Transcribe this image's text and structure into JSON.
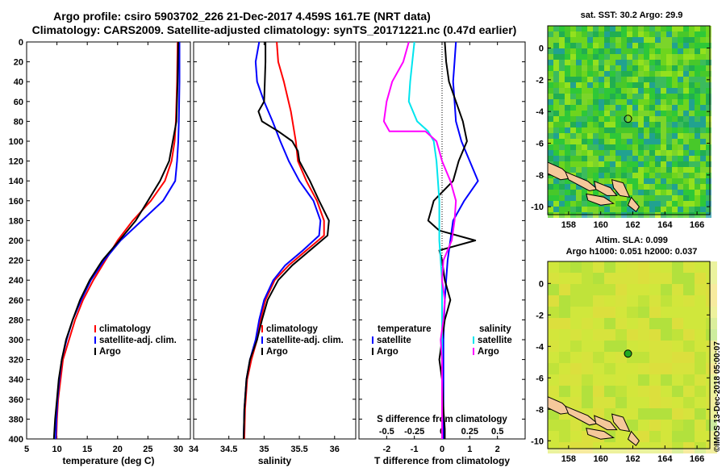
{
  "header": {
    "title_line1": "Argo profile: csiro 5903702_226 21-Dec-2017 4.459S 161.7E (NRT data)",
    "title_line2": "Climatology: CARS2009. Satellite-adjusted climatology: synTS_20171221.nc (0.47d earlier)"
  },
  "colors": {
    "climatology": "#ff0000",
    "satellite": "#0000ff",
    "argo": "#000000",
    "sat_salinity": "#00e5ee",
    "salinity_diff": "#ff00ff"
  },
  "chart_data": [
    {
      "id": "temperature",
      "type": "line",
      "xlabel": "temperature (deg C)",
      "xlim": [
        5,
        32
      ],
      "xticks": [
        "5",
        "10",
        "15",
        "20",
        "25",
        "30"
      ],
      "xtick_values": [
        5,
        10,
        15,
        20,
        25,
        30
      ],
      "ylim": [
        0,
        400
      ],
      "yticks": [
        "0",
        "20",
        "40",
        "60",
        "80",
        "100",
        "120",
        "140",
        "160",
        "180",
        "200",
        "220",
        "240",
        "260",
        "280",
        "300",
        "320",
        "340",
        "360",
        "380",
        "400"
      ],
      "ytick_values": [
        0,
        20,
        40,
        60,
        80,
        100,
        120,
        140,
        160,
        180,
        200,
        220,
        240,
        260,
        280,
        300,
        320,
        340,
        360,
        380,
        400
      ],
      "legend": [
        "climatology",
        "satellite-adj. clim.",
        "Argo"
      ],
      "series": [
        {
          "name": "climatology",
          "color": "#ff0000",
          "points": [
            [
              29.9,
              0
            ],
            [
              29.8,
              40
            ],
            [
              29.6,
              80
            ],
            [
              29.4,
              100
            ],
            [
              28.9,
              120
            ],
            [
              27.8,
              140
            ],
            [
              25.5,
              160
            ],
            [
              22.5,
              180
            ],
            [
              20,
              200
            ],
            [
              18,
              220
            ],
            [
              16,
              240
            ],
            [
              14.3,
              260
            ],
            [
              13,
              280
            ],
            [
              12,
              300
            ],
            [
              11,
              320
            ],
            [
              10.6,
              340
            ],
            [
              10.2,
              360
            ],
            [
              10,
              380
            ],
            [
              9.9,
              400
            ]
          ]
        },
        {
          "name": "satellite-adj. clim.",
          "color": "#0000ff",
          "points": [
            [
              30.2,
              0
            ],
            [
              30.2,
              40
            ],
            [
              30.1,
              80
            ],
            [
              30,
              100
            ],
            [
              29.8,
              120
            ],
            [
              29.5,
              140
            ],
            [
              27.5,
              160
            ],
            [
              24,
              180
            ],
            [
              20.5,
              200
            ],
            [
              17.8,
              220
            ],
            [
              15.6,
              240
            ],
            [
              14,
              260
            ],
            [
              12.6,
              280
            ],
            [
              11.6,
              300
            ],
            [
              10.8,
              320
            ],
            [
              10.4,
              340
            ],
            [
              10.1,
              360
            ],
            [
              9.9,
              380
            ],
            [
              9.8,
              400
            ]
          ]
        },
        {
          "name": "Argo",
          "color": "#000000",
          "points": [
            [
              30,
              0
            ],
            [
              29.9,
              40
            ],
            [
              29.7,
              80
            ],
            [
              29.1,
              100
            ],
            [
              28.5,
              120
            ],
            [
              27,
              140
            ],
            [
              25,
              160
            ],
            [
              23,
              180
            ],
            [
              20.3,
              200
            ],
            [
              17.5,
              220
            ],
            [
              15.4,
              240
            ],
            [
              13.8,
              260
            ],
            [
              12.6,
              280
            ],
            [
              11.5,
              300
            ],
            [
              10.8,
              320
            ],
            [
              10.3,
              340
            ],
            [
              10,
              360
            ],
            [
              9.7,
              380
            ],
            [
              9.5,
              400
            ]
          ]
        }
      ]
    },
    {
      "id": "salinity",
      "type": "line",
      "xlabel": "salinity",
      "xlim": [
        34,
        36.3
      ],
      "xticks": [
        "34",
        "34.5",
        "35",
        "35.5",
        "36"
      ],
      "xtick_values": [
        34,
        34.5,
        35,
        35.5,
        36
      ],
      "ylim": [
        0,
        400
      ],
      "legend": [
        "climatology",
        "satellite-adj. clim.",
        "Argo"
      ],
      "series": [
        {
          "name": "climatology",
          "color": "#ff0000",
          "points": [
            [
              35.18,
              0
            ],
            [
              35.2,
              20
            ],
            [
              35.28,
              40
            ],
            [
              35.38,
              70
            ],
            [
              35.45,
              100
            ],
            [
              35.48,
              120
            ],
            [
              35.6,
              140
            ],
            [
              35.75,
              160
            ],
            [
              35.85,
              180
            ],
            [
              35.85,
              195
            ],
            [
              35.6,
              210
            ],
            [
              35.35,
              225
            ],
            [
              35.15,
              240
            ],
            [
              35.02,
              260
            ],
            [
              34.95,
              280
            ],
            [
              34.9,
              300
            ],
            [
              34.82,
              320
            ],
            [
              34.76,
              340
            ],
            [
              34.73,
              370
            ],
            [
              34.72,
              400
            ]
          ]
        },
        {
          "name": "satellite-adj. clim.",
          "color": "#0000ff",
          "points": [
            [
              34.93,
              0
            ],
            [
              34.88,
              20
            ],
            [
              34.9,
              40
            ],
            [
              35,
              60
            ],
            [
              35.12,
              80
            ],
            [
              35.23,
              100
            ],
            [
              35.35,
              120
            ],
            [
              35.5,
              140
            ],
            [
              35.7,
              160
            ],
            [
              35.8,
              180
            ],
            [
              35.78,
              195
            ],
            [
              35.55,
              210
            ],
            [
              35.3,
              225
            ],
            [
              35.13,
              240
            ],
            [
              35,
              260
            ],
            [
              34.93,
              280
            ],
            [
              34.88,
              300
            ],
            [
              34.8,
              320
            ],
            [
              34.75,
              340
            ],
            [
              34.72,
              370
            ],
            [
              34.71,
              400
            ]
          ]
        },
        {
          "name": "Argo",
          "color": "#000000",
          "points": [
            [
              35.02,
              0
            ],
            [
              35.02,
              20
            ],
            [
              35.01,
              40
            ],
            [
              35,
              60
            ],
            [
              34.92,
              70
            ],
            [
              34.97,
              80
            ],
            [
              35.2,
              90
            ],
            [
              35.4,
              100
            ],
            [
              35.48,
              110
            ],
            [
              35.5,
              120
            ],
            [
              35.65,
              140
            ],
            [
              35.78,
              160
            ],
            [
              35.92,
              180
            ],
            [
              35.9,
              195
            ],
            [
              35.65,
              210
            ],
            [
              35.4,
              225
            ],
            [
              35.2,
              240
            ],
            [
              35.05,
              260
            ],
            [
              34.97,
              280
            ],
            [
              34.9,
              300
            ],
            [
              34.8,
              320
            ],
            [
              34.75,
              340
            ],
            [
              34.72,
              370
            ],
            [
              34.71,
              400
            ]
          ]
        }
      ]
    },
    {
      "id": "differences",
      "type": "line",
      "xlabel": "T difference from climatology",
      "xlabel_top": "S difference from climatology",
      "xlim": [
        -3,
        3
      ],
      "xticks": [
        "-2",
        "-1",
        "0",
        "1",
        "2"
      ],
      "xtick_values": [
        -2,
        -1,
        0,
        1,
        2
      ],
      "xticks_salinity": [
        "-0.5",
        "-0.25",
        "0",
        "0.25",
        "0.5"
      ],
      "legend_left_title": "temperature",
      "legend_right_title": "salinity",
      "legend_left": [
        "satellite",
        "Argo"
      ],
      "legend_right": [
        "satellite",
        "Argo"
      ],
      "series": [
        {
          "name": "T satellite",
          "color": "#0000ff",
          "points": [
            [
              0.5,
              0
            ],
            [
              0.45,
              20
            ],
            [
              0.4,
              40
            ],
            [
              0.45,
              60
            ],
            [
              0.5,
              80
            ],
            [
              0.7,
              100
            ],
            [
              1.0,
              120
            ],
            [
              1.3,
              140
            ],
            [
              0.8,
              160
            ],
            [
              0.4,
              180
            ],
            [
              0.3,
              200
            ],
            [
              0.2,
              220
            ],
            [
              0.15,
              240
            ],
            [
              0.1,
              260
            ],
            [
              0.05,
              300
            ],
            [
              0.05,
              340
            ],
            [
              0.05,
              400
            ]
          ]
        },
        {
          "name": "T Argo",
          "color": "#000000",
          "points": [
            [
              0.1,
              0
            ],
            [
              0.15,
              20
            ],
            [
              0.25,
              40
            ],
            [
              0.5,
              60
            ],
            [
              0.75,
              80
            ],
            [
              0.9,
              100
            ],
            [
              0.6,
              120
            ],
            [
              0.4,
              140
            ],
            [
              -0.3,
              160
            ],
            [
              -0.4,
              170
            ],
            [
              -0.5,
              180
            ],
            [
              -0.1,
              190
            ],
            [
              1.2,
              200
            ],
            [
              -0.1,
              210
            ],
            [
              0,
              220
            ],
            [
              0.1,
              240
            ],
            [
              0.3,
              260
            ],
            [
              0.2,
              270
            ],
            [
              0.1,
              280
            ],
            [
              0,
              300
            ],
            [
              -0.1,
              320
            ],
            [
              0,
              340
            ],
            [
              0.05,
              370
            ],
            [
              0.1,
              390
            ],
            [
              0.1,
              400
            ]
          ]
        },
        {
          "name": "S satellite",
          "color": "#00e5ee",
          "points": [
            [
              -1.0,
              0
            ],
            [
              -1.15,
              40
            ],
            [
              -1.2,
              60
            ],
            [
              -0.9,
              80
            ],
            [
              -0.5,
              90
            ],
            [
              -0.3,
              100
            ],
            [
              -0.2,
              120
            ],
            [
              -0.15,
              140
            ],
            [
              -0.1,
              160
            ],
            [
              -0.1,
              200
            ],
            [
              -0.05,
              220
            ],
            [
              0,
              240
            ],
            [
              0,
              280
            ],
            [
              0,
              320
            ],
            [
              0,
              360
            ],
            [
              0,
              400
            ]
          ]
        },
        {
          "name": "S Argo",
          "color": "#ff00ff",
          "points": [
            [
              -1.2,
              0
            ],
            [
              -1.4,
              20
            ],
            [
              -1.8,
              40
            ],
            [
              -2.0,
              60
            ],
            [
              -2.1,
              80
            ],
            [
              -1.9,
              90
            ],
            [
              -0.6,
              90
            ],
            [
              -0.2,
              100
            ],
            [
              -0.1,
              110
            ],
            [
              0,
              120
            ],
            [
              0.3,
              140
            ],
            [
              0.5,
              160
            ],
            [
              0.45,
              180
            ],
            [
              0.35,
              200
            ],
            [
              0.05,
              220
            ],
            [
              0.0,
              240
            ],
            [
              0.1,
              260
            ],
            [
              0.05,
              280
            ],
            [
              -0.05,
              300
            ],
            [
              0,
              320
            ],
            [
              0,
              340
            ],
            [
              0,
              360
            ],
            [
              0,
              400
            ]
          ]
        }
      ]
    }
  ],
  "map_sst": {
    "title": "sat. SST: 30.2 Argo: 29.9",
    "xticks": [
      "158",
      "160",
      "162",
      "164",
      "166"
    ],
    "xtick_values": [
      158,
      160,
      162,
      164,
      166
    ],
    "yticks": [
      "0",
      "-2",
      "-4",
      "-6",
      "-8",
      "-10"
    ],
    "ytick_values": [
      0,
      -2,
      -4,
      -6,
      -8,
      -10
    ],
    "xlim": [
      156.7,
      166.8
    ],
    "ylim": [
      -10.5,
      1.4
    ],
    "marker": [
      161.7,
      -4.46
    ]
  },
  "map_sla": {
    "title_line1": "Altim. SLA: 0.099",
    "title_line2": "Argo h1000: 0.051 h2000: 0.037",
    "xticks": [
      "158",
      "160",
      "162",
      "164",
      "166"
    ],
    "xtick_values": [
      158,
      160,
      162,
      164,
      166
    ],
    "yticks": [
      "0",
      "-2",
      "-4",
      "-6",
      "-8",
      "-10"
    ],
    "ytick_values": [
      0,
      -2,
      -4,
      -6,
      -8,
      -10
    ],
    "xlim": [
      156.7,
      166.8
    ],
    "ylim": [
      -10.5,
      1.4
    ],
    "marker": [
      161.7,
      -4.46
    ]
  },
  "footer": {
    "credit": "©IMOS 13-Dec-2018 05:00:07"
  }
}
